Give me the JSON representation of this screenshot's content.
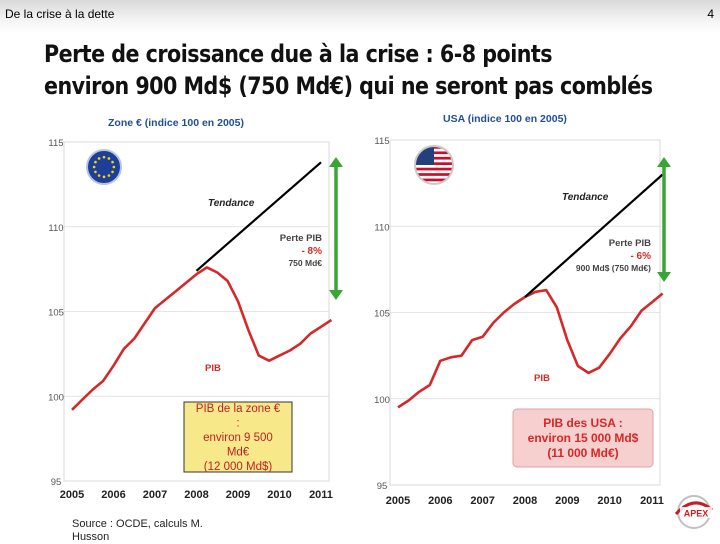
{
  "header": {
    "title": "De la crise à la dette",
    "page_number": "4"
  },
  "headline": {
    "line1": "Perte de croissance due à la crise : 6-8 points",
    "line2": "environ 900 Md$ (750 Md€) qui ne seront pas comblés"
  },
  "source": {
    "line1": "Source : OCDE, calculs M.",
    "line2": "Husson"
  },
  "logo_text": "APEX",
  "colors": {
    "pib": "#d62828",
    "trend": "#000000",
    "arrow": "#3aa534",
    "label_red": "#d62828",
    "label_grey": "#444444"
  },
  "chart_data": [
    {
      "type": "line",
      "title": "Zone € (indice 100 en 2005)",
      "flag": "eu-flag-icon",
      "x_ticks": [
        "2005",
        "2006",
        "2007",
        "2008",
        "2009",
        "2010",
        "2011"
      ],
      "y_ticks": [
        "95",
        "100",
        "105",
        "110",
        "115"
      ],
      "xlim": [
        2005,
        2011
      ],
      "ylim": [
        95,
        115
      ],
      "series": [
        {
          "name": "PIB",
          "values": [
            [
              2005.0,
              99.2
            ],
            [
              2005.25,
              99.8
            ],
            [
              2005.5,
              100.4
            ],
            [
              2005.75,
              100.9
            ],
            [
              2006.0,
              101.8
            ],
            [
              2006.25,
              102.8
            ],
            [
              2006.5,
              103.4
            ],
            [
              2006.75,
              104.3
            ],
            [
              2007.0,
              105.2
            ],
            [
              2007.25,
              105.7
            ],
            [
              2007.5,
              106.2
            ],
            [
              2007.75,
              106.7
            ],
            [
              2008.0,
              107.2
            ],
            [
              2008.25,
              107.6
            ],
            [
              2008.5,
              107.3
            ],
            [
              2008.75,
              106.8
            ],
            [
              2009.0,
              105.6
            ],
            [
              2009.25,
              103.9
            ],
            [
              2009.5,
              102.4
            ],
            [
              2009.75,
              102.1
            ],
            [
              2010.0,
              102.4
            ],
            [
              2010.25,
              102.7
            ],
            [
              2010.5,
              103.1
            ],
            [
              2010.75,
              103.7
            ],
            [
              2011.0,
              104.1
            ],
            [
              2011.25,
              104.5
            ]
          ]
        },
        {
          "name": "Tendance",
          "values": [
            [
              2008.0,
              107.4
            ],
            [
              2011.0,
              113.8
            ]
          ]
        }
      ],
      "annotations": {
        "tendance": "Tendance",
        "perte_title": "Perte PIB",
        "perte_pct": "- 8%",
        "perte_amount": "750 Md€",
        "pib": "PIB",
        "box": [
          "PIB de la zone €",
          ":",
          "environ 9 500",
          "Md€",
          "(12 000 Md$)"
        ]
      }
    },
    {
      "type": "line",
      "title": "USA (indice 100 en 2005)",
      "flag": "us-flag-icon",
      "x_ticks": [
        "2005",
        "2006",
        "2007",
        "2008",
        "2009",
        "2010",
        "2011"
      ],
      "y_ticks": [
        "95",
        "100",
        "105",
        "110",
        "115"
      ],
      "xlim": [
        2005,
        2011
      ],
      "ylim": [
        95,
        115
      ],
      "series": [
        {
          "name": "PIB",
          "values": [
            [
              2005.0,
              99.5
            ],
            [
              2005.25,
              99.9
            ],
            [
              2005.5,
              100.4
            ],
            [
              2005.75,
              100.8
            ],
            [
              2006.0,
              102.2
            ],
            [
              2006.25,
              102.4
            ],
            [
              2006.5,
              102.5
            ],
            [
              2006.75,
              103.4
            ],
            [
              2007.0,
              103.6
            ],
            [
              2007.25,
              104.4
            ],
            [
              2007.5,
              105.0
            ],
            [
              2007.75,
              105.5
            ],
            [
              2008.0,
              105.9
            ],
            [
              2008.25,
              106.2
            ],
            [
              2008.5,
              106.3
            ],
            [
              2008.75,
              105.3
            ],
            [
              2009.0,
              103.4
            ],
            [
              2009.25,
              101.9
            ],
            [
              2009.5,
              101.5
            ],
            [
              2009.75,
              101.8
            ],
            [
              2010.0,
              102.6
            ],
            [
              2010.25,
              103.5
            ],
            [
              2010.5,
              104.2
            ],
            [
              2010.75,
              105.1
            ],
            [
              2011.0,
              105.6
            ],
            [
              2011.25,
              106.1
            ]
          ]
        },
        {
          "name": "Tendance",
          "values": [
            [
              2008.0,
              105.9
            ],
            [
              2011.25,
              113.0
            ]
          ]
        }
      ],
      "annotations": {
        "tendance": "Tendance",
        "perte_title": "Perte PIB",
        "perte_pct": "- 6%",
        "perte_amount": "900 Md$ (750 Md€)",
        "pib": "PIB",
        "box": [
          "PIB des USA :",
          "environ 15 000 Md$",
          "(11 000 Md€)"
        ]
      }
    }
  ]
}
